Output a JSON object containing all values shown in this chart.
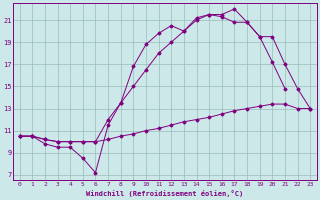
{
  "xlabel": "Windchill (Refroidissement éolien,°C)",
  "bg_color": "#cce8e8",
  "grid_color": "#9bbcbc",
  "line_color": "#800080",
  "xlim": [
    -0.5,
    23.5
  ],
  "ylim": [
    6.5,
    22.5
  ],
  "xticks": [
    0,
    1,
    2,
    3,
    4,
    5,
    6,
    7,
    8,
    9,
    10,
    11,
    12,
    13,
    14,
    15,
    16,
    17,
    18,
    19,
    20,
    21,
    22,
    23
  ],
  "yticks": [
    7,
    9,
    11,
    13,
    15,
    17,
    19,
    21
  ],
  "line1_x": [
    0,
    1,
    2,
    3,
    4,
    5,
    6,
    7,
    8,
    9,
    10,
    11,
    12,
    13,
    14,
    15,
    16,
    17,
    18,
    19,
    20,
    21,
    22,
    23
  ],
  "line1_y": [
    10.5,
    10.5,
    10.2,
    10.0,
    10.0,
    10.0,
    10.0,
    10.2,
    10.5,
    10.7,
    11.0,
    11.2,
    11.5,
    11.8,
    12.0,
    12.2,
    12.5,
    12.8,
    13.0,
    13.2,
    13.4,
    13.4,
    13.0,
    13.0
  ],
  "line2_x": [
    0,
    1,
    2,
    3,
    4,
    5,
    6,
    7,
    8,
    9,
    10,
    11,
    12,
    13,
    14,
    15,
    16,
    17,
    18,
    19,
    20,
    21
  ],
  "line2_y": [
    10.5,
    10.5,
    9.8,
    9.5,
    9.5,
    8.5,
    7.2,
    11.5,
    13.5,
    16.8,
    18.8,
    19.8,
    20.5,
    20.0,
    21.2,
    21.5,
    21.3,
    20.8,
    20.8,
    19.5,
    17.2,
    14.8
  ],
  "line3_x": [
    0,
    1,
    2,
    3,
    4,
    5,
    6,
    7,
    8,
    9,
    10,
    11,
    12,
    13,
    14,
    15,
    16,
    17,
    18,
    19,
    20,
    21,
    22,
    23
  ],
  "line3_y": [
    10.5,
    10.5,
    10.2,
    10.0,
    10.0,
    10.0,
    10.0,
    12.0,
    13.5,
    15.0,
    16.5,
    18.0,
    19.0,
    20.0,
    21.0,
    21.5,
    21.5,
    22.0,
    20.8,
    19.5,
    19.5,
    17.0,
    14.8,
    13.0
  ]
}
